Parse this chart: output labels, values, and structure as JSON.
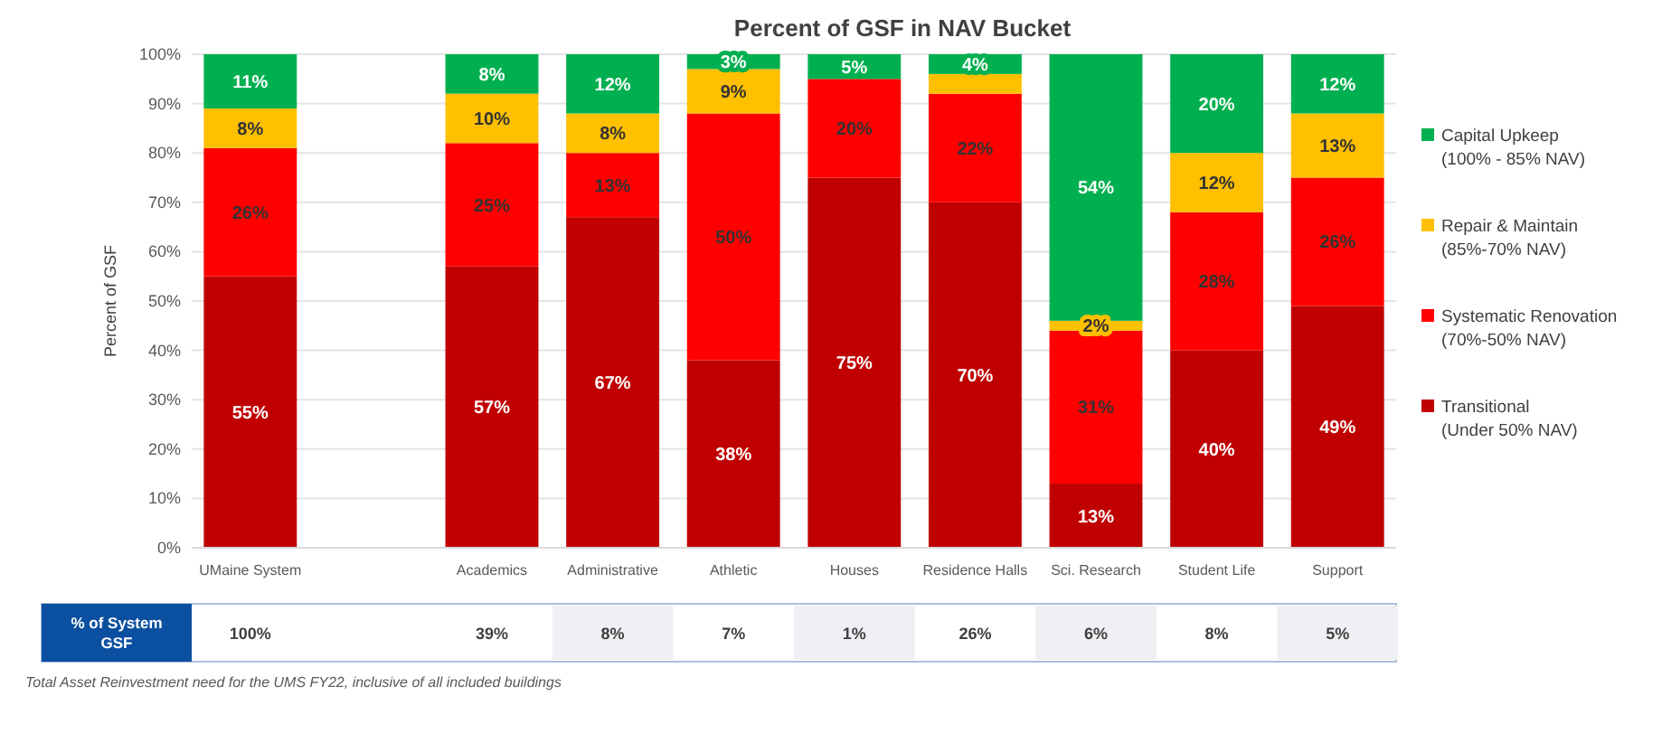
{
  "chart_data": [
    {
      "type": "bar",
      "title": "Percent of GSF in NAV Bucket",
      "ylabel": "Percent of GSF",
      "stacked": true,
      "grid": "y",
      "legend": "right",
      "categories": [
        "UMaine System",
        null,
        "Academics",
        "Administrative",
        "Athletic",
        "Houses",
        "Residence Halls",
        "Sci. Research",
        "Student Life",
        "Support"
      ],
      "ylim": [
        0,
        100
      ],
      "yticks": [
        {
          "value": 0,
          "label": "0%"
        },
        {
          "value": 10,
          "label": "10%"
        },
        {
          "value": 20,
          "label": "20%"
        },
        {
          "value": 30,
          "label": "30%"
        },
        {
          "value": 40,
          "label": "40%"
        },
        {
          "value": 50,
          "label": "50%"
        },
        {
          "value": 60,
          "label": "60%"
        },
        {
          "value": 70,
          "label": "70%"
        },
        {
          "value": 80,
          "label": "80%"
        },
        {
          "value": 90,
          "label": "90%"
        },
        {
          "value": 100,
          "label": "100%"
        }
      ],
      "series": [
        {
          "name": "Transitional (Under 50% NAV)",
          "color": "#c00000",
          "values": [
            55,
            null,
            57,
            67,
            38,
            75,
            70,
            13,
            40,
            49
          ],
          "value_labels": [
            "55%",
            null,
            "57%",
            "67%",
            "38%",
            "75%",
            "70%",
            "13%",
            "40%",
            "49%"
          ]
        },
        {
          "name": "Systematic Renovation (70%-50% NAV)",
          "color": "#ff0000",
          "values": [
            26,
            null,
            25,
            13,
            50,
            20,
            22,
            31,
            28,
            26
          ],
          "value_labels": [
            "26%",
            null,
            "25%",
            "13%",
            "50%",
            "20%",
            "22%",
            "31%",
            "28%",
            "26%"
          ]
        },
        {
          "name": "Repair & Maintain (85%-70% NAV)",
          "color": "#ffc000",
          "values": [
            8,
            null,
            10,
            8,
            9,
            0,
            4,
            2,
            12,
            13
          ],
          "value_labels": [
            "8%",
            null,
            "10%",
            "8%",
            "9%",
            null,
            null,
            "2%",
            "12%",
            "13%"
          ]
        },
        {
          "name": "Capital Upkeep (100% - 85% NAV)",
          "color": "#00b050",
          "values": [
            11,
            null,
            8,
            12,
            3,
            5,
            4,
            54,
            20,
            12
          ],
          "value_labels": [
            "11%",
            null,
            "8%",
            "12%",
            "3%",
            "5%",
            "4%",
            "54%",
            "20%",
            "12%"
          ]
        }
      ]
    },
    {
      "type": "other",
      "title": "% of System GSF",
      "value_labels": [
        "100%",
        null,
        "39%",
        "8%",
        "7%",
        "1%",
        "26%",
        "6%",
        "8%",
        "5%"
      ],
      "annotations": [
        "Total Asset Reinvestment need for the UMS FY22, inclusive of all included buildings"
      ]
    }
  ]
}
